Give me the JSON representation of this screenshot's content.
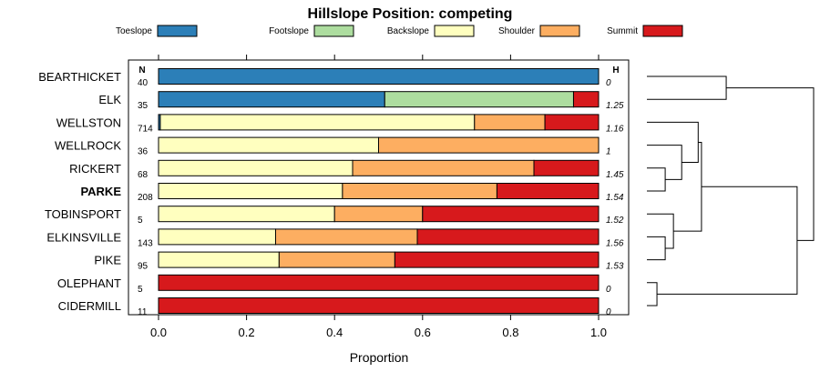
{
  "chart_data": {
    "type": "bar",
    "orientation": "horizontal",
    "stacked": true,
    "title": "Hillslope Position: competing",
    "xlabel": "Proportion",
    "xlim": [
      0,
      1
    ],
    "xticks": [
      "0.0",
      "0.2",
      "0.4",
      "0.6",
      "0.8",
      "1.0"
    ],
    "legend": [
      {
        "name": "Toeslope",
        "color": "#2c7fb8"
      },
      {
        "name": "Footslope",
        "color": "#addd9f"
      },
      {
        "name": "Backslope",
        "color": "#ffffbf"
      },
      {
        "name": "Shoulder",
        "color": "#fdae61"
      },
      {
        "name": "Summit",
        "color": "#d7191c"
      }
    ],
    "n_header": "N",
    "h_header": "H",
    "rows": [
      {
        "label": "BEARTHICKET",
        "n": "40",
        "h": "0",
        "bold": false,
        "values": [
          1.0,
          0,
          0,
          0,
          0
        ]
      },
      {
        "label": "ELK",
        "n": "35",
        "h": "1.25",
        "bold": false,
        "values": [
          0.514,
          0.429,
          0,
          0,
          0.057
        ]
      },
      {
        "label": "WELLSTON",
        "n": "714",
        "h": "1.16",
        "bold": false,
        "values": [
          0.004,
          0,
          0.714,
          0.16,
          0.122
        ]
      },
      {
        "label": "WELLROCK",
        "n": "36",
        "h": "1",
        "bold": false,
        "values": [
          0,
          0,
          0.5,
          0.5,
          0
        ]
      },
      {
        "label": "RICKERT",
        "n": "68",
        "h": "1.45",
        "bold": false,
        "values": [
          0,
          0,
          0.441,
          0.412,
          0.147
        ]
      },
      {
        "label": "PARKE",
        "n": "208",
        "h": "1.54",
        "bold": true,
        "values": [
          0,
          0,
          0.418,
          0.351,
          0.231
        ]
      },
      {
        "label": "TOBINSPORT",
        "n": "5",
        "h": "1.52",
        "bold": false,
        "values": [
          0,
          0,
          0.4,
          0.2,
          0.4
        ]
      },
      {
        "label": "ELKINSVILLE",
        "n": "143",
        "h": "1.56",
        "bold": false,
        "values": [
          0,
          0,
          0.266,
          0.322,
          0.412
        ]
      },
      {
        "label": "PIKE",
        "n": "95",
        "h": "1.53",
        "bold": false,
        "values": [
          0,
          0,
          0.274,
          0.263,
          0.463
        ]
      },
      {
        "label": "OLEPHANT",
        "n": "5",
        "h": "0",
        "bold": false,
        "values": [
          0,
          0,
          0,
          0,
          1.0
        ]
      },
      {
        "label": "CIDERMILL",
        "n": "11",
        "h": "0",
        "bold": false,
        "values": [
          0,
          0,
          0,
          0,
          1.0
        ]
      }
    ],
    "dendrogram": {
      "merges": [
        {
          "left": 9,
          "right": 10,
          "height": 0.05
        },
        {
          "left": 4,
          "right": 5,
          "height": 0.1
        },
        {
          "left": 7,
          "right": 8,
          "height": 0.1
        },
        {
          "left": 6,
          "right": "m2",
          "height": 0.15
        },
        {
          "left": 3,
          "right": "m1",
          "height": 0.2
        },
        {
          "left": 2,
          "right": "m4",
          "height": 0.3
        },
        {
          "left": "m5",
          "right": "m3",
          "height": 0.32
        },
        {
          "left": 0,
          "right": 1,
          "height": 0.47
        },
        {
          "left": "m6",
          "right": "m0",
          "height": 0.9
        },
        {
          "left": "m7",
          "right": "m8",
          "height": 1.0
        }
      ]
    }
  }
}
